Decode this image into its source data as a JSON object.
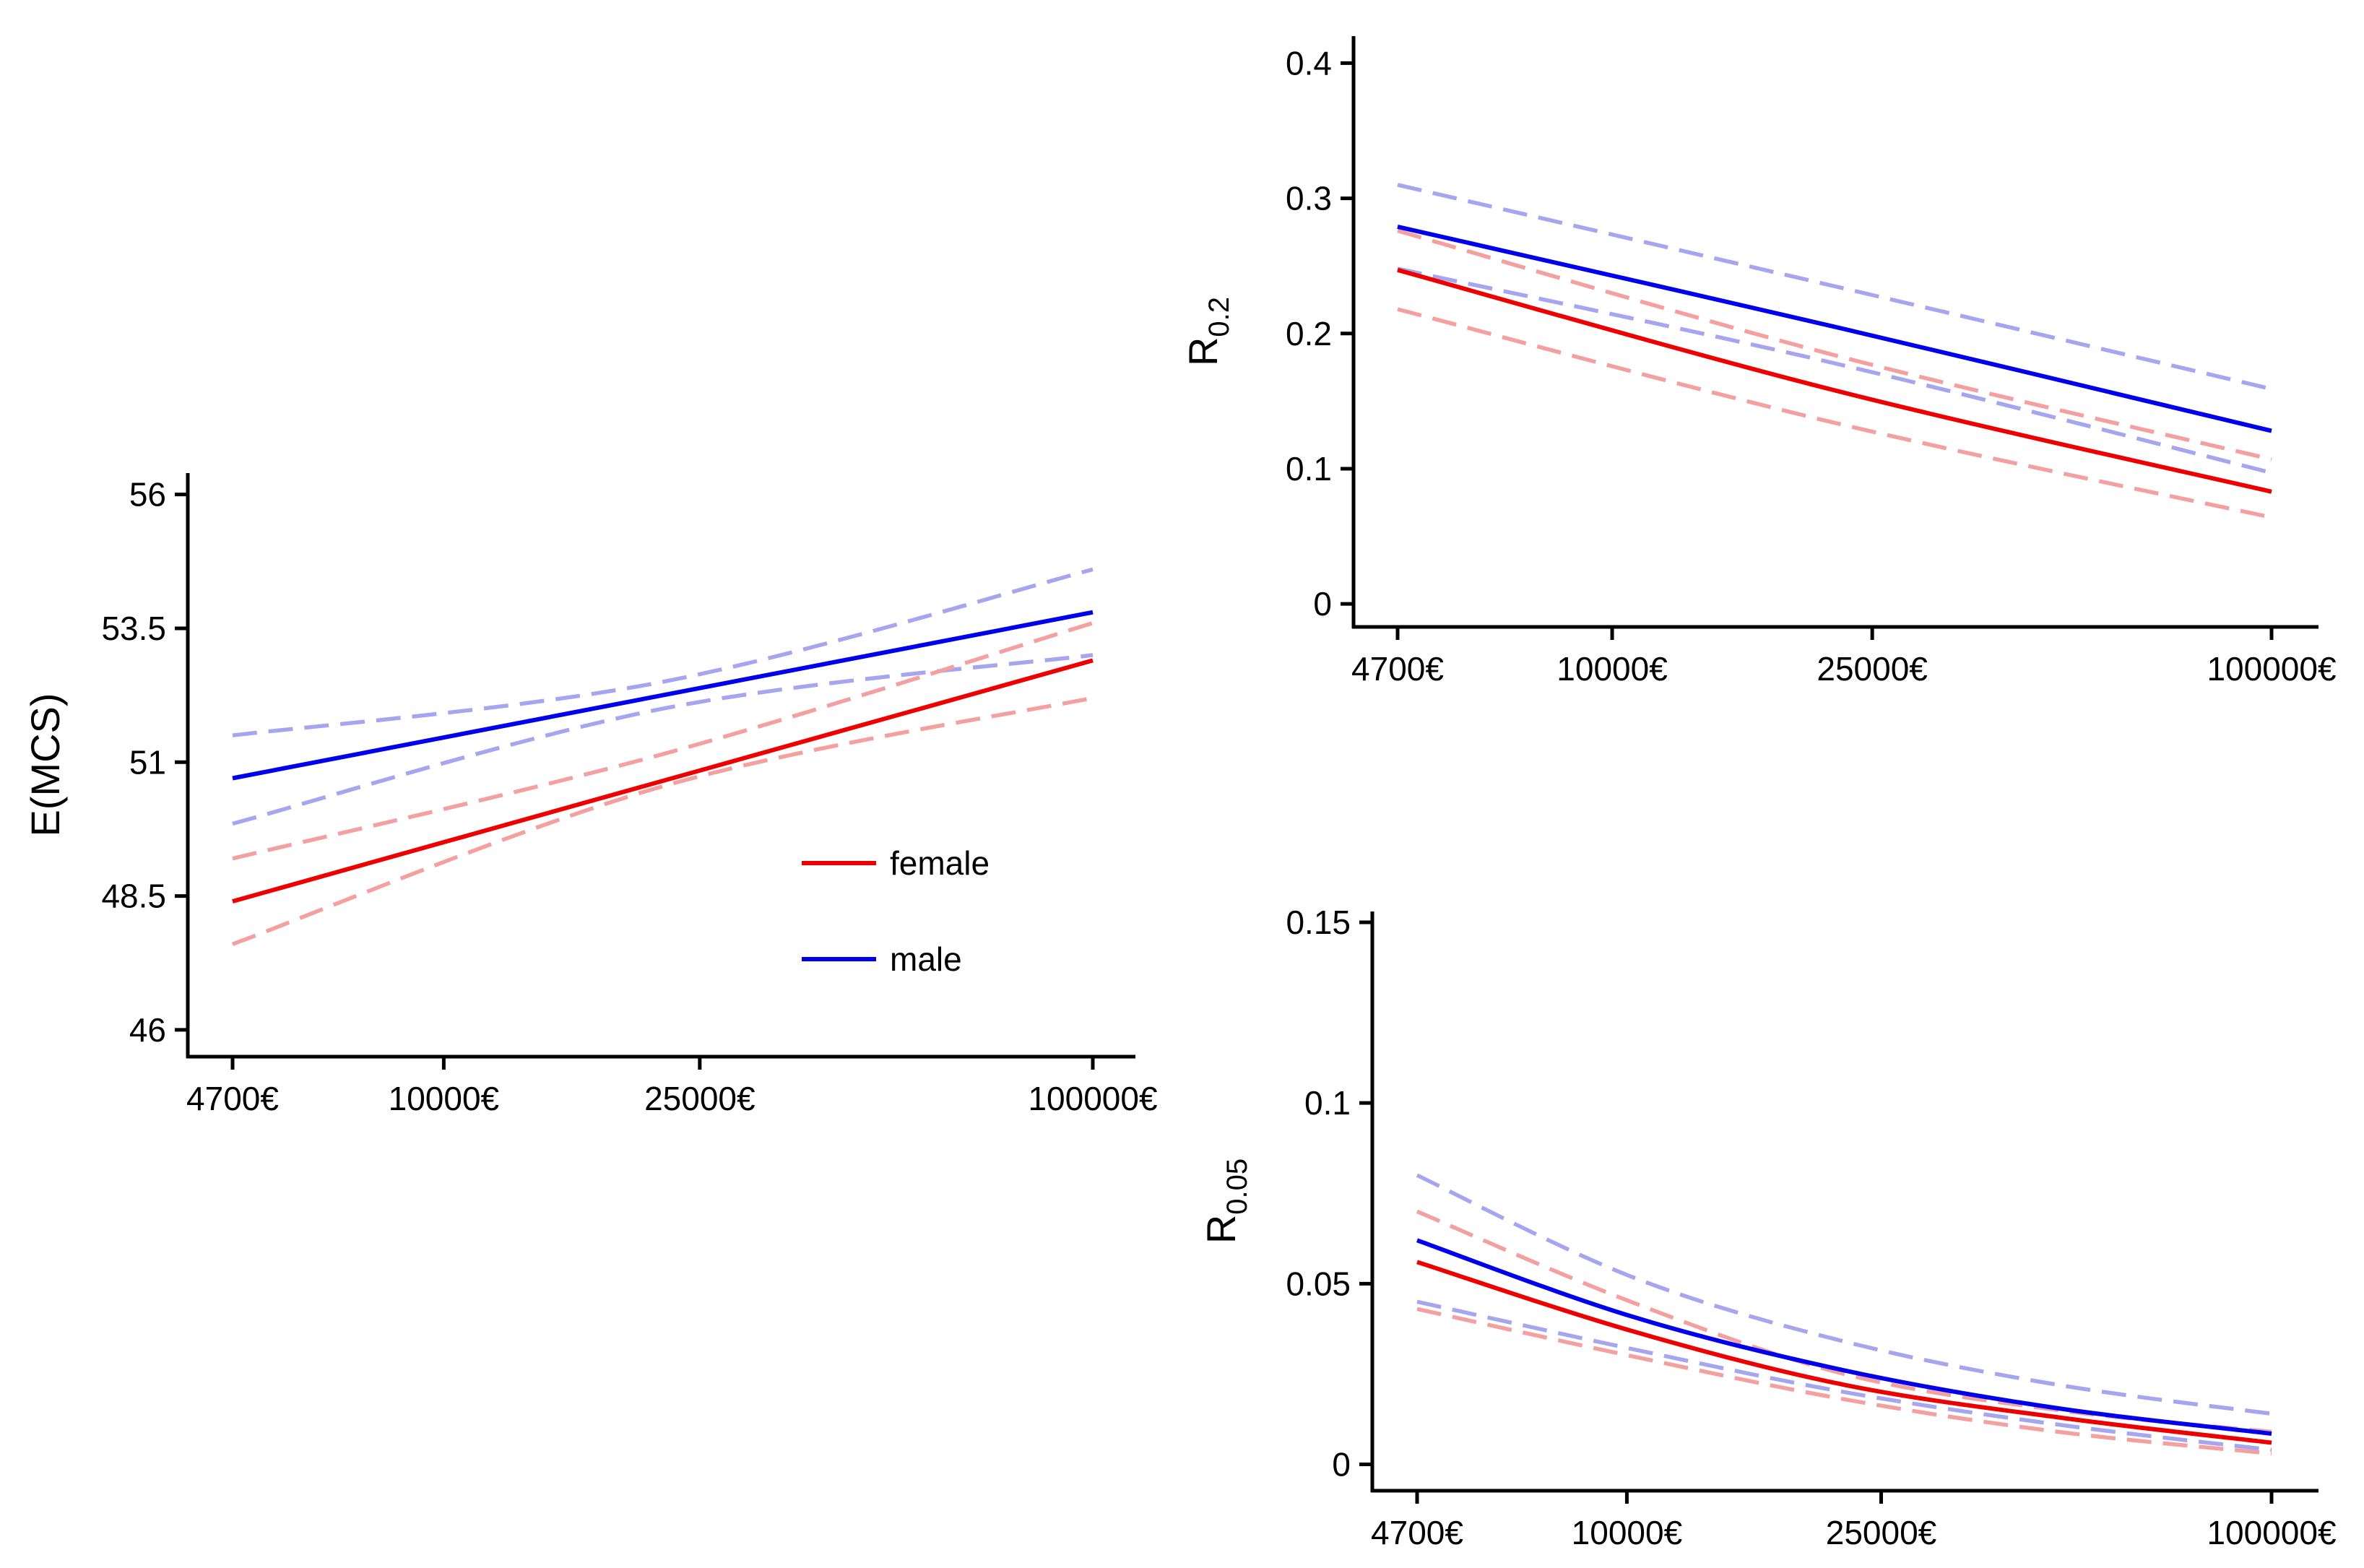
{
  "colors": {
    "female": "#ee0000",
    "male": "#0000ee",
    "female_ci": "#f5a0a0",
    "male_ci": "#a6a6f0",
    "axis": "#000000"
  },
  "chart_data": [
    {
      "id": "mcs",
      "type": "line",
      "ylabel": "E(MCS)",
      "x_ticks": [
        {
          "label": "4700€",
          "pos": 0.0
        },
        {
          "label": "10000€",
          "pos": 0.2455
        },
        {
          "label": "25000€",
          "pos": 0.5431
        },
        {
          "label": "100000€",
          "pos": 1.0
        }
      ],
      "ylim": [
        45.5,
        56.4
      ],
      "y_ticks": [
        {
          "value": 46,
          "label": "46"
        },
        {
          "value": 48.5,
          "label": "48.5"
        },
        {
          "value": 51,
          "label": "51"
        },
        {
          "value": 53.5,
          "label": "53.5"
        },
        {
          "value": 56,
          "label": "56"
        }
      ],
      "legend": {
        "position": "bottom-right",
        "entries": [
          {
            "name": "female",
            "label": "female"
          },
          {
            "name": "male",
            "label": "male"
          }
        ]
      },
      "series": [
        {
          "name": "male",
          "kind": "estimate",
          "x": [
            0,
            1
          ],
          "y": [
            50.7,
            53.8
          ]
        },
        {
          "name": "male",
          "kind": "ci-upper",
          "x": [
            0,
            0.5,
            1
          ],
          "y": [
            51.5,
            52.5,
            54.6
          ]
        },
        {
          "name": "male",
          "kind": "ci-lower",
          "x": [
            0,
            0.5,
            1
          ],
          "y": [
            49.85,
            52.0,
            53.0
          ]
        },
        {
          "name": "female",
          "kind": "estimate",
          "x": [
            0,
            1
          ],
          "y": [
            48.4,
            52.9
          ]
        },
        {
          "name": "female",
          "kind": "ci-upper",
          "x": [
            0,
            0.5,
            1
          ],
          "y": [
            49.2,
            51.15,
            53.6
          ]
        },
        {
          "name": "female",
          "kind": "ci-lower",
          "x": [
            0,
            0.5,
            1
          ],
          "y": [
            47.6,
            50.55,
            52.2
          ]
        }
      ]
    },
    {
      "id": "r02",
      "type": "line",
      "ylabel": "R",
      "ylabel_sub": "0.2",
      "x_ticks": [
        {
          "label": "4700€",
          "pos": 0.0
        },
        {
          "label": "10000€",
          "pos": 0.2455
        },
        {
          "label": "25000€",
          "pos": 0.5431
        },
        {
          "label": "100000€",
          "pos": 1.0
        }
      ],
      "ylim": [
        -0.017,
        0.42
      ],
      "y_ticks": [
        {
          "value": 0,
          "label": "0"
        },
        {
          "value": 0.1,
          "label": "0.1"
        },
        {
          "value": 0.2,
          "label": "0.2"
        },
        {
          "value": 0.3,
          "label": "0.3"
        },
        {
          "value": 0.4,
          "label": "0.4"
        }
      ],
      "series": [
        {
          "name": "male",
          "kind": "estimate",
          "x": [
            0,
            0.5,
            1
          ],
          "y": [
            0.279,
            0.205,
            0.128
          ]
        },
        {
          "name": "male",
          "kind": "ci-upper",
          "x": [
            0,
            0.5,
            1
          ],
          "y": [
            0.31,
            0.235,
            0.159
          ]
        },
        {
          "name": "male",
          "kind": "ci-lower",
          "x": [
            0,
            0.5,
            1
          ],
          "y": [
            0.248,
            0.178,
            0.097
          ]
        },
        {
          "name": "female",
          "kind": "estimate",
          "x": [
            0,
            0.5,
            1
          ],
          "y": [
            0.247,
            0.158,
            0.083
          ]
        },
        {
          "name": "female",
          "kind": "ci-upper",
          "x": [
            0,
            0.5,
            1
          ],
          "y": [
            0.276,
            0.184,
            0.107
          ]
        },
        {
          "name": "female",
          "kind": "ci-lower",
          "x": [
            0,
            0.5,
            1
          ],
          "y": [
            0.218,
            0.134,
            0.064
          ]
        }
      ]
    },
    {
      "id": "r005",
      "type": "line",
      "ylabel": "R",
      "ylabel_sub": "0.05",
      "x_ticks": [
        {
          "label": "4700€",
          "pos": 0.0
        },
        {
          "label": "10000€",
          "pos": 0.2455
        },
        {
          "label": "25000€",
          "pos": 0.5431
        },
        {
          "label": "100000€",
          "pos": 1.0
        }
      ],
      "ylim": [
        -0.0073,
        0.153
      ],
      "y_ticks": [
        {
          "value": 0,
          "label": "0"
        },
        {
          "value": 0.05,
          "label": "0.05"
        },
        {
          "value": 0.1,
          "label": "0.1"
        },
        {
          "value": 0.15,
          "label": "0.15"
        }
      ],
      "series": [
        {
          "name": "male",
          "kind": "estimate",
          "x": [
            0,
            0.25,
            0.5,
            0.75,
            1
          ],
          "y": [
            0.062,
            0.041,
            0.026,
            0.0155,
            0.0085
          ]
        },
        {
          "name": "male",
          "kind": "ci-upper",
          "x": [
            0,
            0.25,
            0.5,
            0.75,
            1
          ],
          "y": [
            0.08,
            0.052,
            0.034,
            0.022,
            0.014
          ]
        },
        {
          "name": "male",
          "kind": "ci-lower",
          "x": [
            0,
            0.25,
            0.5,
            0.75,
            1
          ],
          "y": [
            0.045,
            0.032,
            0.02,
            0.011,
            0.004
          ]
        },
        {
          "name": "female",
          "kind": "estimate",
          "x": [
            0,
            0.25,
            0.5,
            0.75,
            1
          ],
          "y": [
            0.056,
            0.037,
            0.022,
            0.013,
            0.006
          ]
        },
        {
          "name": "female",
          "kind": "ci-upper",
          "x": [
            0,
            0.25,
            0.5,
            0.75,
            1
          ],
          "y": [
            0.07,
            0.045,
            0.025,
            0.015,
            0.009
          ]
        },
        {
          "name": "female",
          "kind": "ci-lower",
          "x": [
            0,
            0.25,
            0.5,
            0.75,
            1
          ],
          "y": [
            0.043,
            0.03,
            0.018,
            0.009,
            0.003
          ]
        }
      ]
    }
  ]
}
